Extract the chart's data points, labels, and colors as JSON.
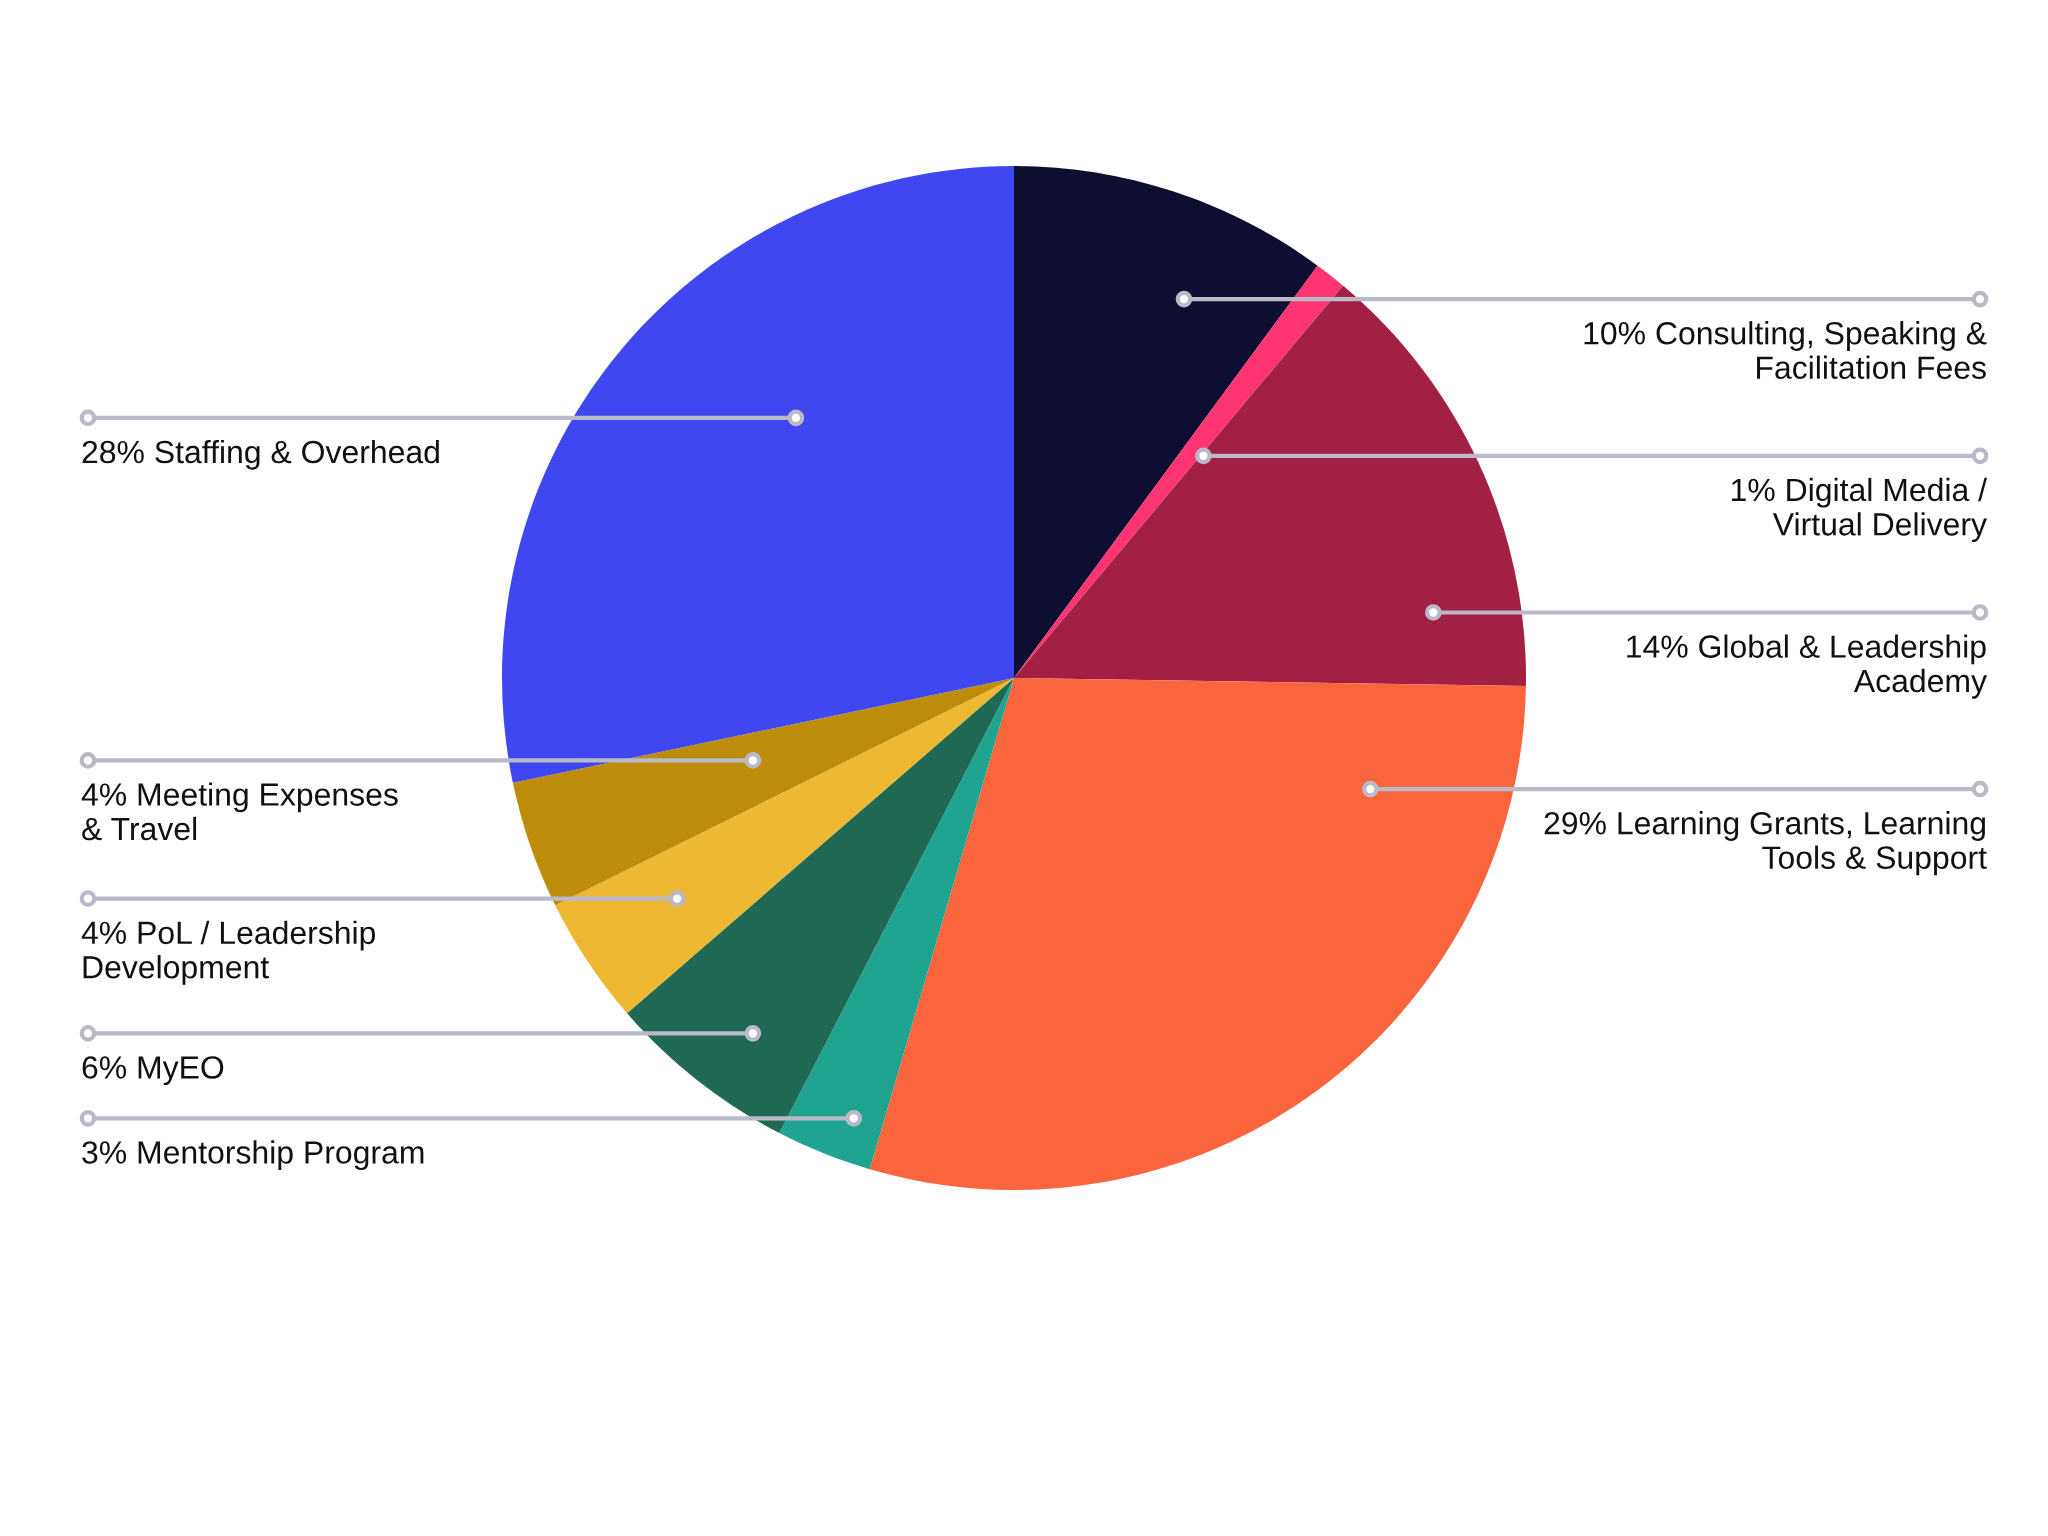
{
  "chart_data": {
    "type": "pie",
    "categories": [
      "10% Consulting, Speaking &\nFacilitation Fees",
      "1% Digital Media /\nVirtual Delivery",
      "14% Global & Leadership\nAcademy",
      "29% Learning Grants, Learning\nTools & Support",
      "3% Mentorship Program",
      "6% MyEO",
      "4% PoL / Leadership\nDevelopment",
      "4% Meeting Expenses\n& Travel",
      "28% Staffing & Overhead"
    ],
    "values": [
      10,
      1,
      14,
      29,
      3,
      6,
      4,
      4,
      28
    ],
    "colors": [
      "#0d0e31",
      "#ff3472",
      "#a32045",
      "#fa653d",
      "#1fa58f",
      "#206a55",
      "#efb832",
      "#be8c0b",
      "#3f47f1"
    ],
    "legend": false
  }
}
